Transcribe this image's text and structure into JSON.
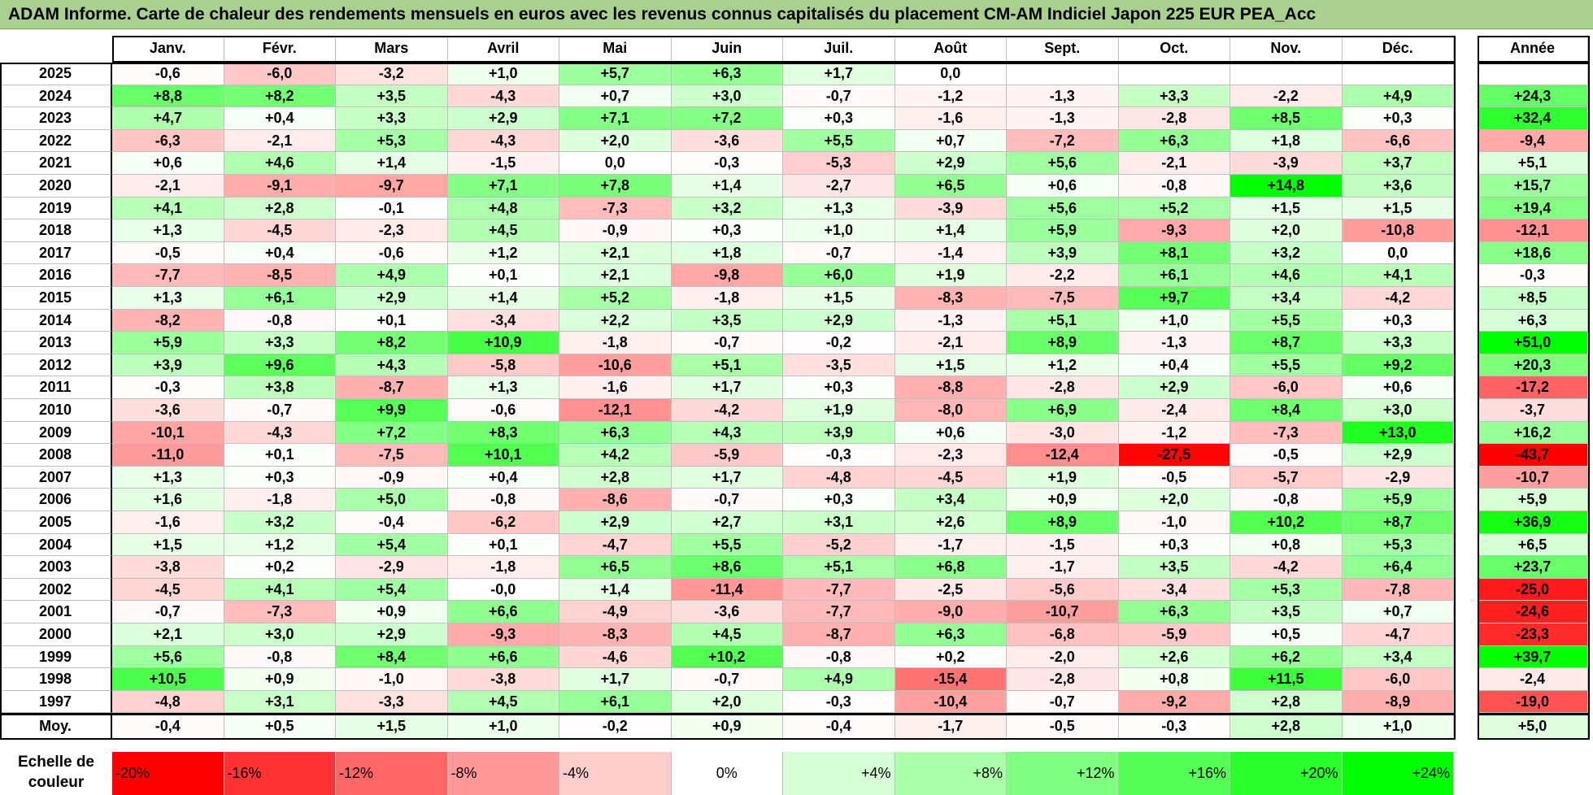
{
  "title": "ADAM Informe. Carte de chaleur des rendements mensuels en euros avec les revenus connus capitalisés du placement CM-AM Indiciel Japon 225 EUR PEA_Acc",
  "chart_data": {
    "type": "heatmap",
    "title": "ADAM Informe. Carte de chaleur des rendements mensuels en euros avec les revenus connus capitalisés du placement CM-AM Indiciel Japon 225 EUR PEA_Acc",
    "columns": [
      "Janv.",
      "Févr.",
      "Mars",
      "Avril",
      "Mai",
      "Juin",
      "Juil.",
      "Août",
      "Sept.",
      "Oct.",
      "Nov.",
      "Déc."
    ],
    "year_header": "Année",
    "rows": [
      {
        "label": "2025",
        "values": [
          -0.6,
          -6.0,
          -3.2,
          1.0,
          5.7,
          6.3,
          1.7,
          0.0,
          null,
          null,
          null,
          null
        ],
        "year": null
      },
      {
        "label": "2024",
        "values": [
          8.8,
          8.2,
          3.5,
          -4.3,
          0.7,
          3.0,
          -0.7,
          -1.2,
          -1.3,
          3.3,
          -2.2,
          4.9
        ],
        "year": 24.3
      },
      {
        "label": "2023",
        "values": [
          4.7,
          0.4,
          3.3,
          2.9,
          7.1,
          7.2,
          0.3,
          -1.6,
          -1.3,
          -2.8,
          8.5,
          0.3
        ],
        "year": 32.4
      },
      {
        "label": "2022",
        "values": [
          -6.3,
          -2.1,
          5.3,
          -4.3,
          2.0,
          -3.6,
          5.5,
          0.7,
          -7.2,
          6.3,
          1.8,
          -6.6
        ],
        "year": -9.4
      },
      {
        "label": "2021",
        "values": [
          0.6,
          4.6,
          1.4,
          -1.5,
          0.0,
          -0.3,
          -5.3,
          2.9,
          5.6,
          -2.1,
          -3.9,
          3.7
        ],
        "year": 5.1
      },
      {
        "label": "2020",
        "values": [
          -2.1,
          -9.1,
          -9.7,
          7.1,
          7.8,
          1.4,
          -2.7,
          6.5,
          0.6,
          -0.8,
          14.8,
          3.6
        ],
        "year": 15.7
      },
      {
        "label": "2019",
        "values": [
          4.1,
          2.8,
          -0.1,
          4.8,
          -7.3,
          3.2,
          1.3,
          -3.9,
          5.6,
          5.2,
          1.5,
          1.5
        ],
        "year": 19.4
      },
      {
        "label": "2018",
        "values": [
          1.3,
          -4.5,
          -2.3,
          4.5,
          -0.9,
          0.3,
          1.0,
          1.4,
          5.9,
          -9.3,
          2.0,
          -10.8
        ],
        "year": -12.1
      },
      {
        "label": "2017",
        "values": [
          -0.5,
          0.4,
          -0.6,
          1.2,
          2.1,
          1.8,
          -0.7,
          -1.4,
          3.9,
          8.1,
          3.2,
          0.0
        ],
        "year": 18.6
      },
      {
        "label": "2016",
        "values": [
          -7.7,
          -8.5,
          4.9,
          0.1,
          2.1,
          -9.8,
          6.0,
          1.9,
          -2.2,
          6.1,
          4.6,
          4.1
        ],
        "year": -0.3
      },
      {
        "label": "2015",
        "values": [
          1.3,
          6.1,
          2.9,
          1.4,
          5.2,
          -1.8,
          1.5,
          -8.3,
          -7.5,
          9.7,
          3.4,
          -4.2
        ],
        "year": 8.5
      },
      {
        "label": "2014",
        "values": [
          -8.2,
          -0.8,
          0.1,
          -3.4,
          2.2,
          3.5,
          2.9,
          -1.3,
          5.1,
          1.0,
          5.5,
          0.3
        ],
        "year": 6.3
      },
      {
        "label": "2013",
        "values": [
          5.9,
          3.3,
          8.2,
          10.9,
          -1.8,
          -0.7,
          -0.2,
          -2.1,
          8.9,
          -1.3,
          8.7,
          3.3
        ],
        "year": 51.0
      },
      {
        "label": "2012",
        "values": [
          3.9,
          9.6,
          4.3,
          -5.8,
          -10.6,
          5.1,
          -3.5,
          1.5,
          1.2,
          0.4,
          5.5,
          9.2
        ],
        "year": 20.3
      },
      {
        "label": "2011",
        "values": [
          -0.3,
          3.8,
          -8.7,
          1.3,
          -1.6,
          1.7,
          0.3,
          -8.8,
          -2.8,
          2.9,
          -6.0,
          0.6
        ],
        "year": -17.2
      },
      {
        "label": "2010",
        "values": [
          -3.6,
          -0.7,
          9.9,
          -0.6,
          -12.1,
          -4.2,
          1.9,
          -8.0,
          6.9,
          -2.4,
          8.4,
          3.0
        ],
        "year": -3.7
      },
      {
        "label": "2009",
        "values": [
          -10.1,
          -4.3,
          7.2,
          8.3,
          6.3,
          4.3,
          3.9,
          0.6,
          -3.0,
          -1.2,
          -7.3,
          13.0
        ],
        "year": 16.2
      },
      {
        "label": "2008",
        "values": [
          -11.0,
          0.1,
          -7.5,
          10.1,
          4.2,
          -5.9,
          -0.3,
          -2.3,
          -12.4,
          -27.5,
          -0.5,
          2.9
        ],
        "year": -43.7
      },
      {
        "label": "2007",
        "values": [
          1.3,
          0.3,
          -0.9,
          0.4,
          2.8,
          1.7,
          -4.8,
          -4.5,
          1.9,
          -0.5,
          -5.7,
          -2.9
        ],
        "year": -10.7
      },
      {
        "label": "2006",
        "values": [
          1.6,
          -1.8,
          5.0,
          -0.8,
          -8.6,
          -0.7,
          0.3,
          3.4,
          0.9,
          2.0,
          -0.8,
          5.9
        ],
        "year": 5.9
      },
      {
        "label": "2005",
        "values": [
          -1.6,
          3.2,
          -0.4,
          -6.2,
          2.9,
          2.7,
          3.1,
          2.6,
          8.9,
          -1.0,
          10.2,
          8.7
        ],
        "year": 36.9
      },
      {
        "label": "2004",
        "values": [
          1.5,
          1.2,
          5.4,
          0.1,
          -4.7,
          5.5,
          -5.2,
          -1.7,
          -1.5,
          0.3,
          0.8,
          5.3
        ],
        "year": 6.5
      },
      {
        "label": "2003",
        "values": [
          -3.8,
          0.2,
          -2.9,
          -1.8,
          6.5,
          8.6,
          5.1,
          6.8,
          -1.7,
          3.5,
          -4.2,
          6.4
        ],
        "year": 23.7
      },
      {
        "label": "2002",
        "values": [
          -4.5,
          4.1,
          5.4,
          -0.0,
          1.4,
          -11.4,
          -7.7,
          -2.5,
          -5.6,
          -3.4,
          5.3,
          -7.8
        ],
        "year": -25.0
      },
      {
        "label": "2001",
        "values": [
          -0.7,
          -7.3,
          0.9,
          6.6,
          -4.9,
          -3.6,
          -7.7,
          -9.0,
          -10.7,
          6.3,
          3.5,
          0.7
        ],
        "year": -24.6
      },
      {
        "label": "2000",
        "values": [
          2.1,
          3.0,
          2.9,
          -9.3,
          -8.3,
          4.5,
          -8.7,
          6.3,
          -6.8,
          -5.9,
          0.5,
          -4.7
        ],
        "year": -23.3
      },
      {
        "label": "1999",
        "values": [
          5.6,
          -0.8,
          8.4,
          6.6,
          -4.6,
          10.2,
          -0.8,
          0.2,
          -2.0,
          2.6,
          6.2,
          3.4
        ],
        "year": 39.7
      },
      {
        "label": "1998",
        "values": [
          10.5,
          0.9,
          -1.0,
          -3.8,
          1.7,
          -0.7,
          4.9,
          -15.4,
          -2.8,
          0.8,
          11.5,
          -6.0
        ],
        "year": -2.4
      },
      {
        "label": "1997",
        "values": [
          -4.8,
          3.1,
          -3.3,
          4.5,
          6.1,
          2.0,
          -0.3,
          -10.4,
          -0.7,
          -9.2,
          2.8,
          -8.9
        ],
        "year": -19.0
      }
    ],
    "average": {
      "label": "Moy.",
      "values": [
        -0.4,
        0.5,
        1.5,
        1.0,
        -0.2,
        0.9,
        -0.4,
        -1.7,
        -0.5,
        -0.3,
        2.8,
        1.0
      ],
      "year": 5.0
    },
    "scale": {
      "label": "Echelle de couleur",
      "stops": [
        "-20%",
        "-16%",
        "-12%",
        "-8%",
        "-4%",
        "0%",
        "+4%",
        "+8%",
        "+12%",
        "+16%",
        "+20%",
        "+24%"
      ]
    },
    "colors": {
      "negative": "#ff0000",
      "neutral": "#ffffff",
      "positive": "#00ff00",
      "title_bg": "#a9d08e"
    }
  }
}
